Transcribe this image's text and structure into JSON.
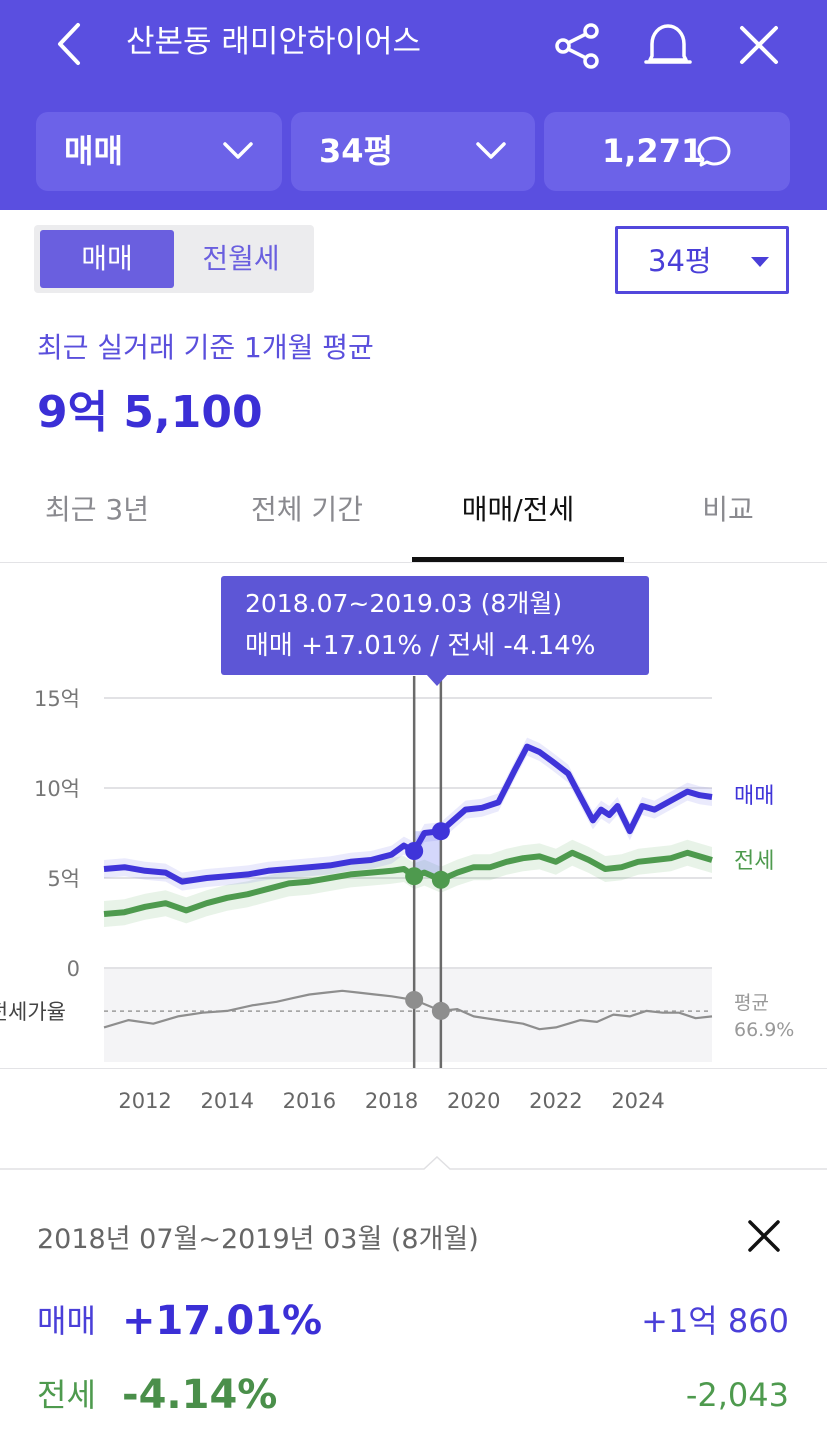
{
  "header": {
    "title": "산본동 래미안하이어스",
    "icons": {
      "back": "chevron-left-icon",
      "share": "share-icon",
      "alarm": "bell-icon",
      "close": "close-icon"
    }
  },
  "filters": {
    "trade": "매매",
    "size": "34평",
    "comments": "1,271"
  },
  "segment": {
    "active": "매매",
    "inactive": "전월세"
  },
  "size_select": "34평",
  "summary": {
    "subtitle": "최근 실거래 기준 1개월 평균",
    "price": "9억 5,100"
  },
  "tabs": [
    {
      "label": "최근 3년",
      "active": false
    },
    {
      "label": "전체 기간",
      "active": false
    },
    {
      "label": "매매/전세",
      "active": true
    },
    {
      "label": "비교",
      "active": false
    }
  ],
  "tooltip": {
    "range": "2018.07~2019.03 (8개월)",
    "changes": "매매 +17.01%  /  전세 -4.14%"
  },
  "chart_data": {
    "type": "line",
    "y_ticks": [
      "15억",
      "10억",
      "5억",
      "0"
    ],
    "ylim": [
      0,
      15
    ],
    "yunit": "억",
    "x_ticks": [
      "2012",
      "2014",
      "2016",
      "2018",
      "2020",
      "2022",
      "2024"
    ],
    "xlim": [
      2011.0,
      2025.8
    ],
    "ratio_label": "전세가율",
    "avg_label": "평균",
    "avg_value": "66.9%",
    "selection": {
      "start": 2018.55,
      "end": 2019.2
    },
    "colors": {
      "sale": "#3f34d9",
      "lease": "#4e9a4e",
      "ratio": "#8e8e8e"
    },
    "series": [
      {
        "name": "매매",
        "x": [
          2011.0,
          2011.5,
          2012.0,
          2012.5,
          2012.9,
          2013.5,
          2014.0,
          2014.5,
          2015.0,
          2015.5,
          2016.0,
          2016.5,
          2017.0,
          2017.5,
          2018.0,
          2018.3,
          2018.55,
          2018.8,
          2019.2,
          2019.5,
          2019.8,
          2020.2,
          2020.6,
          2021.0,
          2021.3,
          2021.6,
          2021.9,
          2022.3,
          2022.6,
          2022.9,
          2023.1,
          2023.3,
          2023.5,
          2023.8,
          2024.1,
          2024.4,
          2024.8,
          2025.2,
          2025.5,
          2025.8
        ],
        "values": [
          5.5,
          5.6,
          5.4,
          5.3,
          4.8,
          5.0,
          5.1,
          5.2,
          5.4,
          5.5,
          5.6,
          5.7,
          5.9,
          6.0,
          6.3,
          6.8,
          6.5,
          7.5,
          7.6,
          8.2,
          8.8,
          8.9,
          9.2,
          11.0,
          12.3,
          12.0,
          11.5,
          10.8,
          9.5,
          8.2,
          8.8,
          8.5,
          9.0,
          7.6,
          9.0,
          8.8,
          9.3,
          9.8,
          9.6,
          9.5
        ]
      },
      {
        "name": "전세",
        "x": [
          2011.0,
          2011.5,
          2012.0,
          2012.5,
          2013.0,
          2013.5,
          2014.0,
          2014.5,
          2015.0,
          2015.5,
          2016.0,
          2016.5,
          2017.0,
          2017.5,
          2018.0,
          2018.3,
          2018.55,
          2018.8,
          2019.2,
          2019.6,
          2020.0,
          2020.4,
          2020.8,
          2021.2,
          2021.6,
          2022.0,
          2022.4,
          2022.8,
          2023.2,
          2023.6,
          2024.0,
          2024.4,
          2024.8,
          2025.2,
          2025.5,
          2025.8
        ],
        "values": [
          3.0,
          3.1,
          3.4,
          3.6,
          3.2,
          3.6,
          3.9,
          4.1,
          4.4,
          4.7,
          4.8,
          5.0,
          5.2,
          5.3,
          5.4,
          5.5,
          5.1,
          5.3,
          4.9,
          5.3,
          5.6,
          5.6,
          5.9,
          6.1,
          6.2,
          5.9,
          6.4,
          6.0,
          5.5,
          5.6,
          5.9,
          6.0,
          6.1,
          6.4,
          6.2,
          6.0
        ]
      },
      {
        "name": "전세가율",
        "x": [
          2011.0,
          2011.6,
          2012.2,
          2012.8,
          2013.4,
          2014.0,
          2014.6,
          2015.2,
          2015.6,
          2016.0,
          2016.4,
          2016.8,
          2017.2,
          2017.6,
          2018.0,
          2018.55,
          2019.2,
          2019.6,
          2020.0,
          2020.6,
          2021.2,
          2021.6,
          2022.0,
          2022.6,
          2023.0,
          2023.4,
          2023.8,
          2024.2,
          2024.6,
          2025.0,
          2025.4,
          2025.8
        ],
        "values": [
          58,
          62,
          60,
          64,
          66,
          67,
          70,
          72,
          74,
          76,
          77,
          78,
          77,
          76,
          75,
          73,
          67,
          68,
          64,
          62,
          60,
          57,
          58,
          62,
          61,
          65,
          64,
          67,
          66,
          66,
          63,
          64
        ]
      }
    ]
  },
  "detail": {
    "title": "2018년 07월~2019년 03월 (8개월)",
    "rows": [
      {
        "label": "매매",
        "pct": "+17.01%",
        "amount": "+1억 860"
      },
      {
        "label": "전세",
        "pct": "-4.14%",
        "amount": "-2,043"
      }
    ]
  }
}
